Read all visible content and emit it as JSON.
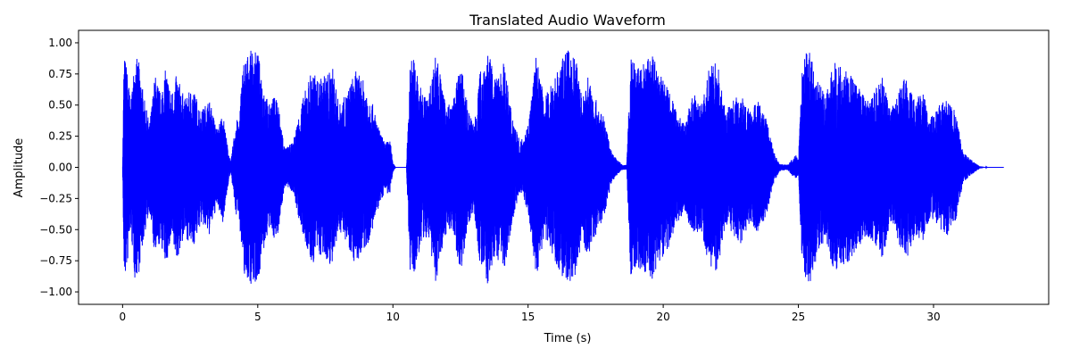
{
  "chart_data": {
    "type": "line",
    "title": "Translated Audio Waveform",
    "xlabel": "Time (s)",
    "ylabel": "Amplitude",
    "xlim": [
      -1.63,
      34.26
    ],
    "ylim": [
      -1.1,
      1.1
    ],
    "grid": false,
    "x_ticks": [
      {
        "value": 0,
        "label": "0"
      },
      {
        "value": 5,
        "label": "5"
      },
      {
        "value": 10,
        "label": "10"
      },
      {
        "value": 15,
        "label": "15"
      },
      {
        "value": 20,
        "label": "20"
      },
      {
        "value": 25,
        "label": "25"
      },
      {
        "value": 30,
        "label": "30"
      }
    ],
    "y_ticks": [
      {
        "value": 1.0,
        "label": "1.00"
      },
      {
        "value": 0.75,
        "label": "0.75"
      },
      {
        "value": 0.5,
        "label": "0.50"
      },
      {
        "value": 0.25,
        "label": "0.25"
      },
      {
        "value": 0.0,
        "label": "0.00"
      },
      {
        "value": -0.25,
        "label": "−0.25"
      },
      {
        "value": -0.5,
        "label": "−0.50"
      },
      {
        "value": -0.75,
        "label": "−0.75"
      },
      {
        "value": -1.0,
        "label": "−1.00"
      }
    ],
    "series": [
      {
        "color": "#0000ff",
        "duration": 32.6,
        "envelope": {
          "time": [
            0.0,
            0.05,
            0.1,
            0.2,
            0.3,
            0.45,
            0.6,
            0.8,
            1.0,
            1.2,
            1.4,
            1.6,
            1.8,
            2.0,
            2.3,
            2.6,
            2.9,
            3.2,
            3.5,
            3.7,
            3.9,
            4.0,
            4.2,
            4.3,
            4.45,
            4.6,
            4.8,
            5.0,
            5.2,
            5.4,
            5.7,
            6.0,
            6.3,
            6.6,
            6.8,
            7.0,
            7.2,
            7.5,
            7.8,
            8.0,
            8.3,
            8.6,
            8.9,
            9.2,
            9.5,
            9.7,
            9.9,
            10.0,
            10.1,
            10.3,
            10.5,
            10.65,
            10.8,
            11.0,
            11.3,
            11.6,
            11.9,
            12.2,
            12.5,
            12.8,
            13.0,
            13.2,
            13.5,
            13.8,
            14.1,
            14.4,
            14.7,
            15.0,
            15.3,
            15.6,
            15.9,
            16.2,
            16.5,
            16.8,
            17.0,
            17.2,
            17.5,
            17.8,
            18.1,
            18.3,
            18.5,
            18.65,
            18.8,
            19.0,
            19.3,
            19.6,
            19.9,
            20.2,
            20.5,
            20.8,
            21.1,
            21.4,
            21.7,
            22.0,
            22.3,
            22.6,
            22.9,
            23.2,
            23.5,
            23.8,
            24.1,
            24.3,
            24.6,
            24.9,
            25.0,
            25.15,
            25.3,
            25.45,
            25.7,
            26.0,
            26.3,
            26.6,
            26.9,
            27.2,
            27.5,
            27.8,
            28.1,
            28.4,
            28.7,
            29.0,
            29.3,
            29.6,
            29.9,
            30.2,
            30.5,
            30.8,
            31.1,
            31.4,
            31.7,
            32.0,
            32.2,
            32.4,
            32.6
          ],
          "amplitude": [
            0.02,
            0.9,
            0.88,
            0.75,
            0.5,
            0.9,
            0.85,
            0.55,
            0.35,
            0.75,
            0.6,
            0.8,
            0.6,
            0.75,
            0.55,
            0.65,
            0.45,
            0.55,
            0.3,
            0.45,
            0.15,
            0.04,
            0.4,
            0.35,
            0.85,
            0.9,
            0.95,
            0.92,
            0.7,
            0.5,
            0.6,
            0.15,
            0.2,
            0.5,
            0.65,
            0.8,
            0.7,
            0.75,
            0.8,
            0.5,
            0.6,
            0.78,
            0.7,
            0.55,
            0.3,
            0.2,
            0.22,
            0.04,
            0.0,
            0.0,
            0.0,
            0.9,
            0.88,
            0.65,
            0.55,
            0.95,
            0.55,
            0.5,
            0.85,
            0.45,
            0.35,
            0.75,
            0.95,
            0.7,
            0.85,
            0.45,
            0.2,
            0.35,
            0.9,
            0.55,
            0.7,
            0.85,
            0.95,
            0.85,
            0.55,
            0.75,
            0.55,
            0.4,
            0.12,
            0.06,
            0.02,
            0.02,
            0.9,
            0.8,
            0.85,
            0.9,
            0.75,
            0.65,
            0.45,
            0.35,
            0.6,
            0.5,
            0.8,
            0.85,
            0.45,
            0.55,
            0.62,
            0.45,
            0.55,
            0.4,
            0.12,
            0.03,
            0.02,
            0.1,
            0.06,
            0.85,
            0.98,
            0.92,
            0.75,
            0.55,
            0.85,
            0.8,
            0.75,
            0.65,
            0.55,
            0.6,
            0.75,
            0.45,
            0.6,
            0.78,
            0.55,
            0.6,
            0.4,
            0.5,
            0.55,
            0.45,
            0.12,
            0.06,
            0.01,
            0.0,
            0.0,
            0.0,
            0.0
          ]
        }
      }
    ]
  }
}
